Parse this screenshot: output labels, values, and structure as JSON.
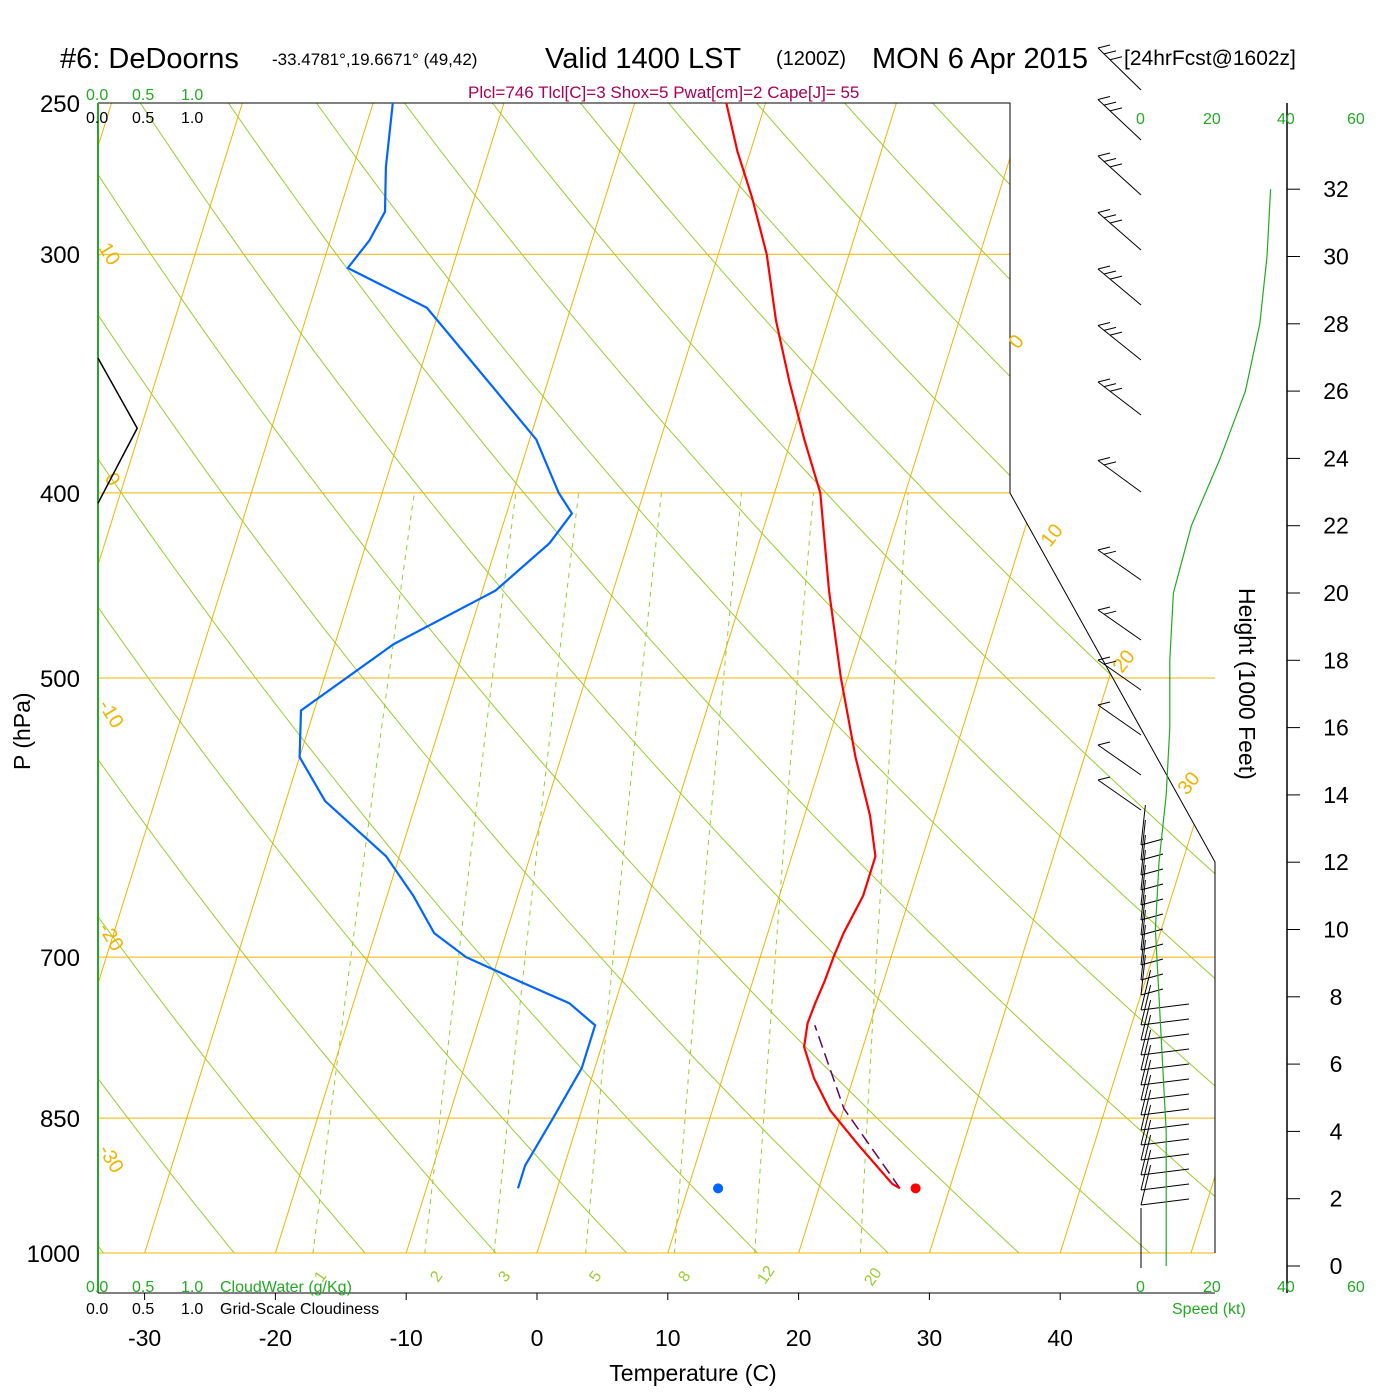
{
  "title": {
    "station": "#6: DeDoorns",
    "coords": "-33.4781°,19.6671° (49,42)",
    "valid": "Valid 1400 LST",
    "zulu": "(1200Z)",
    "date": "MON 6 Apr 2015",
    "forecast": "[24hrFcst@1602z]"
  },
  "indices_line": "Plcl=746 Tlcl[C]=3 Shox=5 Pwat[cm]=2 Cape[J]= 55",
  "colors": {
    "temperature": "#ff0000",
    "dewpoint": "#0066ff",
    "isotherm": "#f0b400",
    "dry_adiabat": "#9acd32",
    "mixing_ratio": "#9acd32",
    "cloudwater": "#22aa22",
    "parcel": "#660066",
    "indices": "#aa0055"
  },
  "bottom_labels": {
    "cloudwater_ticks": [
      "0.0",
      "0.5",
      "1.0"
    ],
    "cloudwater_label": "CloudWater (g/Kg)",
    "cloudiness_ticks": [
      "0.0",
      "0.5",
      "1.0"
    ],
    "cloudiness_label": "Grid-Scale Cloudiness",
    "speed_label": "Speed (kt)",
    "speed_ticks": [
      "0",
      "20",
      "40",
      "60"
    ]
  },
  "chart_data": {
    "type": "line",
    "subtype": "skew-T log-P sounding",
    "xlabel": "Temperature (C)",
    "ylabel": "P (hPa)",
    "right_label": "Height (1000 Feet)",
    "x_ticks": [
      -30,
      -20,
      -10,
      0,
      10,
      20,
      30,
      40
    ],
    "y_ticks": [
      250,
      300,
      400,
      500,
      700,
      850,
      1000
    ],
    "height_ticks": [
      0,
      2,
      4,
      6,
      8,
      10,
      12,
      14,
      16,
      18,
      20,
      22,
      24,
      26,
      28,
      30,
      32
    ],
    "ylim": [
      1000,
      250
    ],
    "y_scale": "log",
    "isotherm_labels": [
      "10",
      "0",
      "-10",
      "-20",
      "-30",
      "0",
      "10",
      "20",
      "30"
    ],
    "mixing_ratio_labels": [
      "1",
      "2",
      "3",
      "5",
      "8",
      "12",
      "20"
    ],
    "series": [
      {
        "kind": "temperature",
        "points": [
          [
            26.2,
            925
          ],
          [
            25.5,
            920
          ],
          [
            22.0,
            878
          ],
          [
            19.0,
            842
          ],
          [
            17.0,
            810
          ],
          [
            15.5,
            780
          ],
          [
            15.2,
            758
          ],
          [
            15.3,
            740
          ],
          [
            15.5,
            720
          ],
          [
            15.6,
            700
          ],
          [
            15.8,
            680
          ],
          [
            16.4,
            650
          ],
          [
            16.4,
            620
          ],
          [
            15.0,
            590
          ],
          [
            12.5,
            550
          ],
          [
            9.5,
            500
          ],
          [
            6.5,
            450
          ],
          [
            3.5,
            400
          ],
          [
            1.0,
            375
          ],
          [
            -1.5,
            350
          ],
          [
            -4.0,
            325
          ],
          [
            -6.3,
            300
          ],
          [
            -8.8,
            280
          ],
          [
            -11.0,
            265
          ],
          [
            -13.0,
            250
          ]
        ]
      },
      {
        "kind": "dewpoint",
        "points": [
          [
            -3.0,
            925
          ],
          [
            -3.0,
            920
          ],
          [
            -3.0,
            900
          ],
          [
            -2.0,
            850
          ],
          [
            -1.0,
            800
          ],
          [
            -1.0,
            760
          ],
          [
            -3.5,
            740
          ],
          [
            -8.0,
            720
          ],
          [
            -12.5,
            700
          ],
          [
            -15.5,
            680
          ],
          [
            -18.0,
            650
          ],
          [
            -21.0,
            620
          ],
          [
            -27.0,
            580
          ],
          [
            -30.0,
            550
          ],
          [
            -31.0,
            520
          ],
          [
            -25.5,
            480
          ],
          [
            -19.0,
            450
          ],
          [
            -16.0,
            425
          ],
          [
            -15.0,
            410
          ],
          [
            -16.5,
            400
          ],
          [
            -19.5,
            375
          ],
          [
            -24.5,
            350
          ],
          [
            -31.0,
            320
          ],
          [
            -38.0,
            305
          ],
          [
            -37.0,
            295
          ],
          [
            -36.5,
            285
          ],
          [
            -37.5,
            270
          ],
          [
            -38.5,
            250
          ]
        ]
      },
      {
        "kind": "parcel",
        "points": [
          [
            26.2,
            925
          ],
          [
            20.0,
            840
          ],
          [
            15.8,
            760
          ]
        ]
      }
    ],
    "surface_temperature": 27.4,
    "surface_dewpoint": 12.3,
    "wind_speed_profile_kt": [
      [
        0,
        7
      ],
      [
        2,
        7
      ],
      [
        4,
        7
      ],
      [
        6,
        6
      ],
      [
        8,
        5
      ],
      [
        10,
        4
      ],
      [
        12,
        5
      ],
      [
        14,
        7
      ],
      [
        16,
        8
      ],
      [
        18,
        8
      ],
      [
        20,
        9
      ],
      [
        22,
        14
      ],
      [
        24,
        22
      ],
      [
        26,
        29
      ],
      [
        28,
        33
      ],
      [
        30,
        35
      ],
      [
        32,
        36
      ]
    ],
    "cloud_profile": [
      [
        0.0,
        340
      ],
      [
        0.4,
        370
      ],
      [
        0.0,
        405
      ]
    ]
  }
}
